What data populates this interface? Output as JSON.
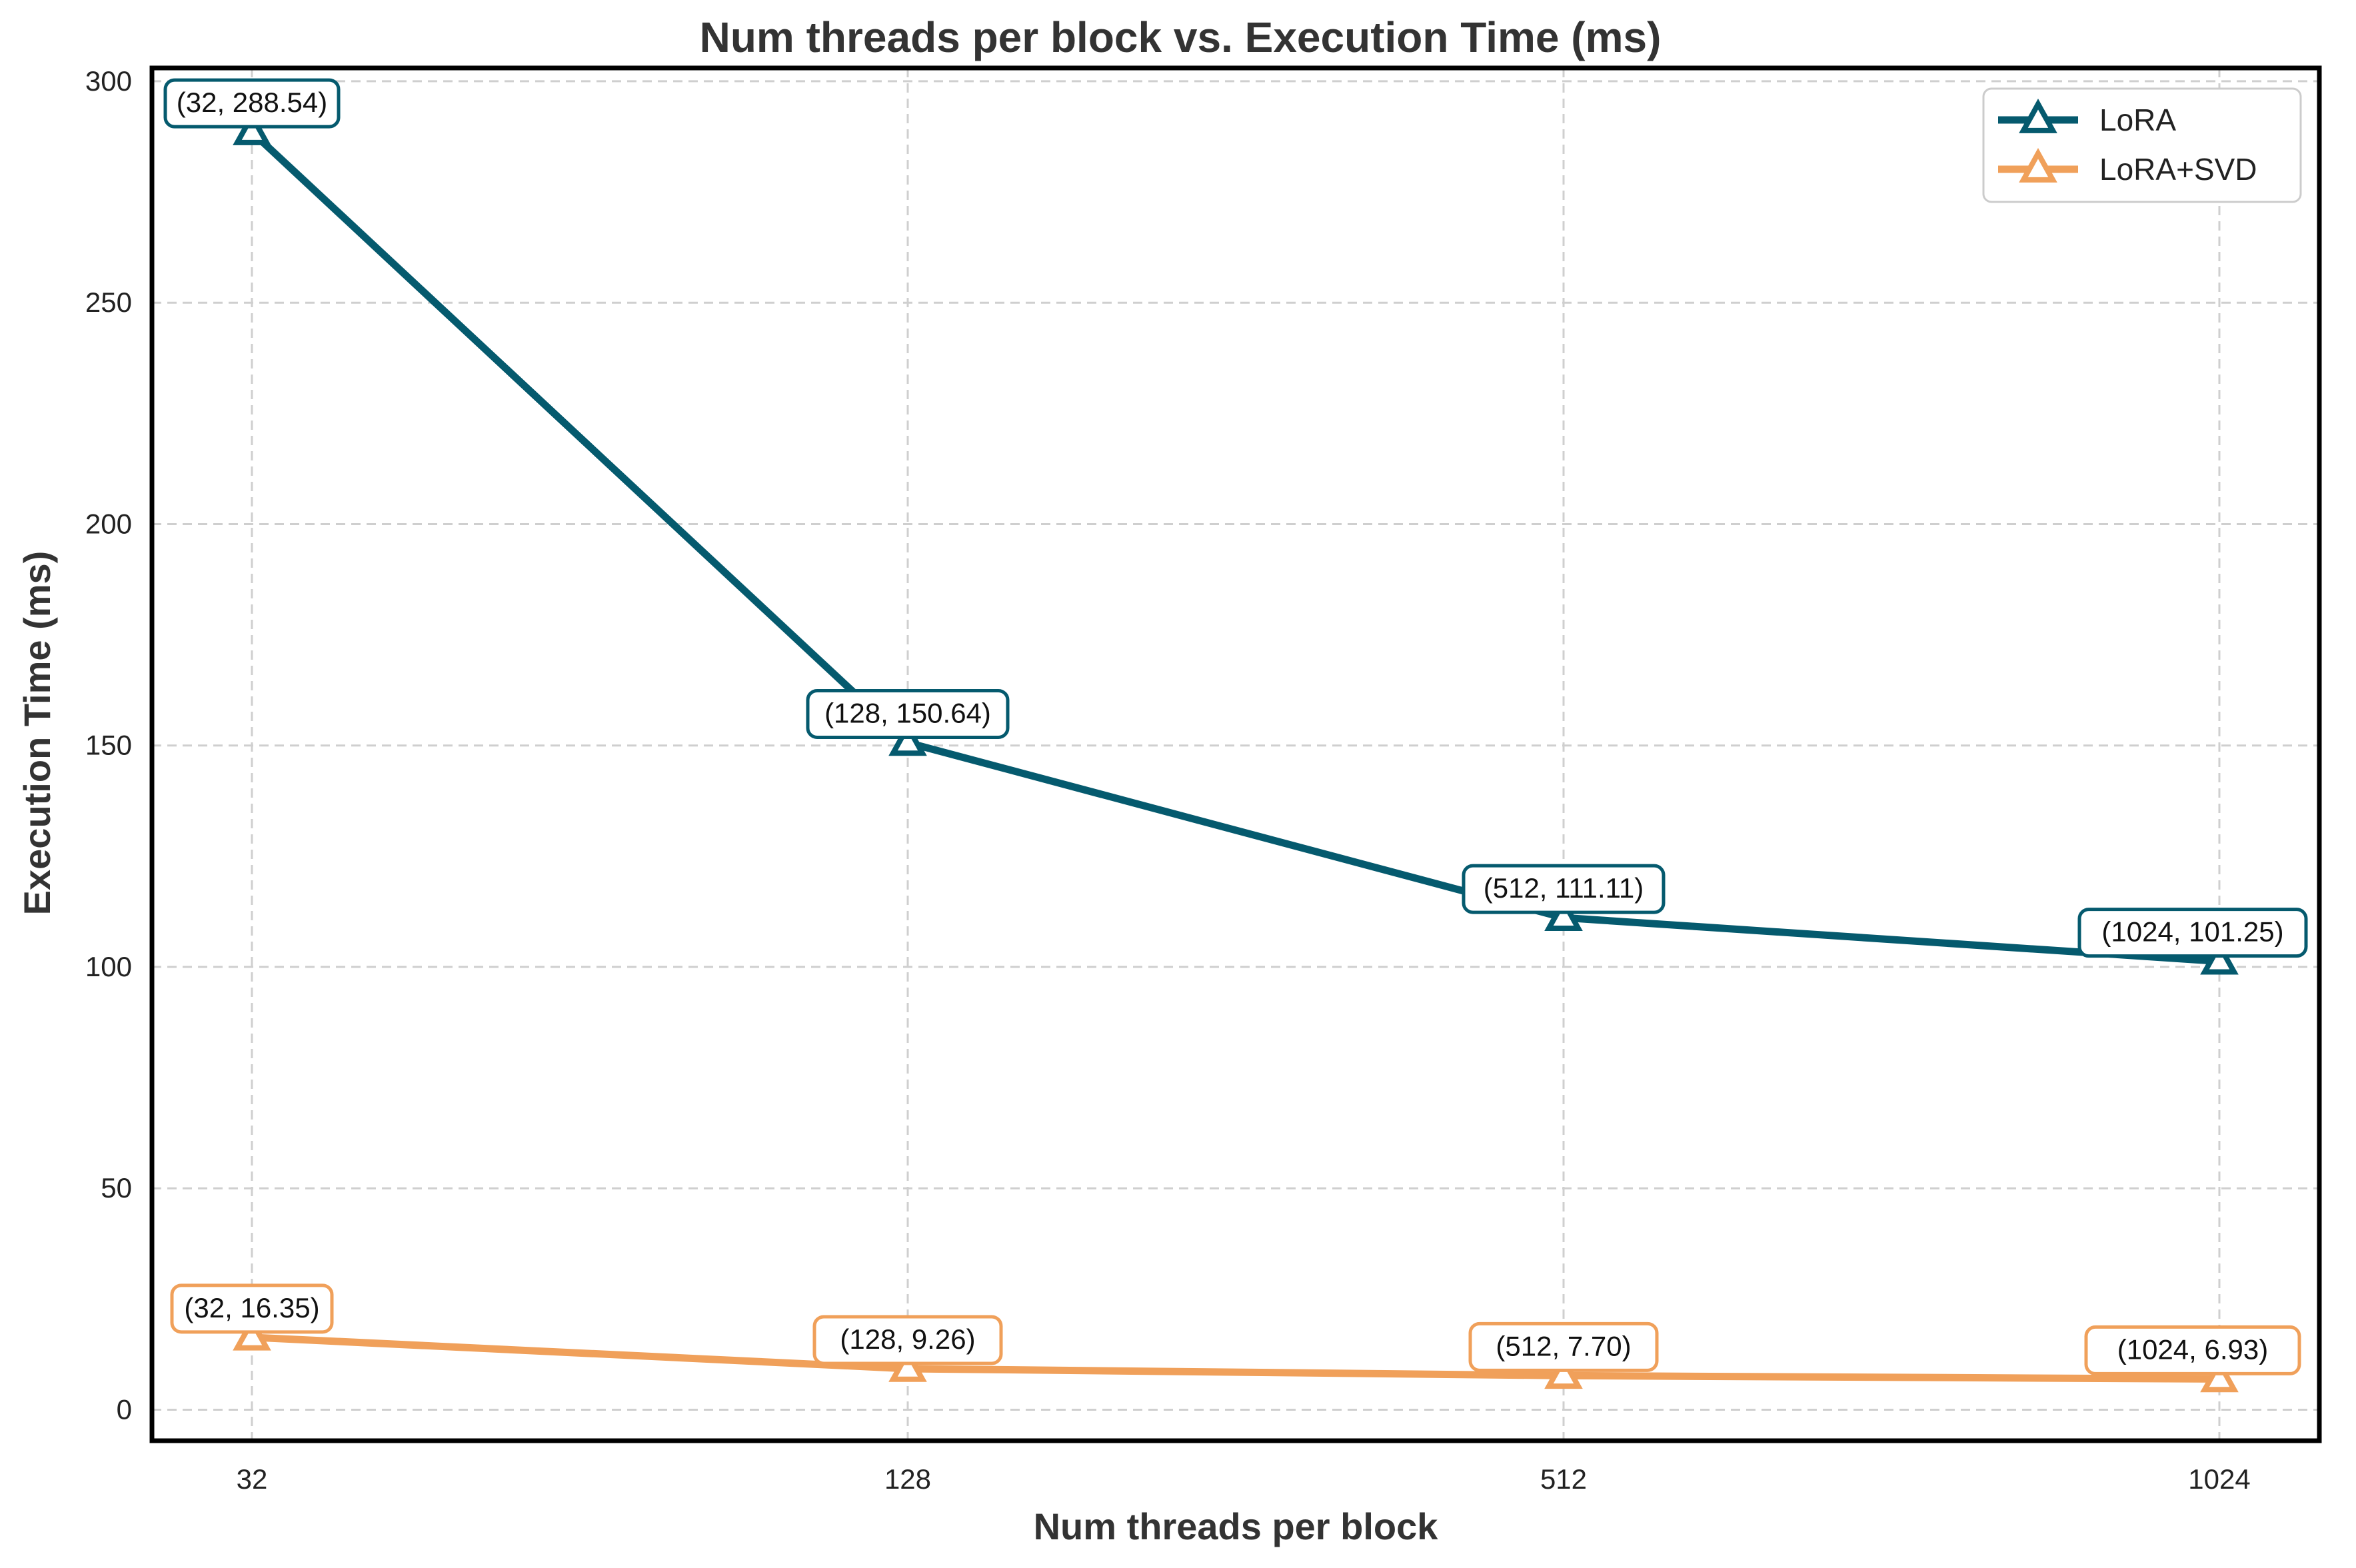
{
  "chart_data": {
    "type": "line",
    "title": "Num threads per block vs. Execution Time (ms)",
    "xlabel": "Num threads per block",
    "ylabel": "Execution Time (ms)",
    "x_scale": "categorical",
    "categories": [
      "32",
      "128",
      "512",
      "1024"
    ],
    "ylim": [
      -7,
      303
    ],
    "yticks": [
      0,
      50,
      100,
      150,
      200,
      250,
      300
    ],
    "grid": true,
    "legend_position": "top-right",
    "series": [
      {
        "name": "LoRA",
        "color": "#055A6E",
        "marker": "triangle-up-open",
        "values": [
          288.54,
          150.64,
          111.11,
          101.25
        ],
        "labels": [
          "(32, 288.54)",
          "(128, 150.64)",
          "(512, 111.11)",
          "(1024, 101.25)"
        ]
      },
      {
        "name": "LoRA+SVD",
        "color": "#F0A05A",
        "marker": "triangle-up-open",
        "values": [
          16.35,
          9.26,
          7.7,
          6.93
        ],
        "labels": [
          "(32, 16.35)",
          "(128, 9.26)",
          "(512, 7.70)",
          "(1024, 6.93)"
        ]
      }
    ]
  }
}
